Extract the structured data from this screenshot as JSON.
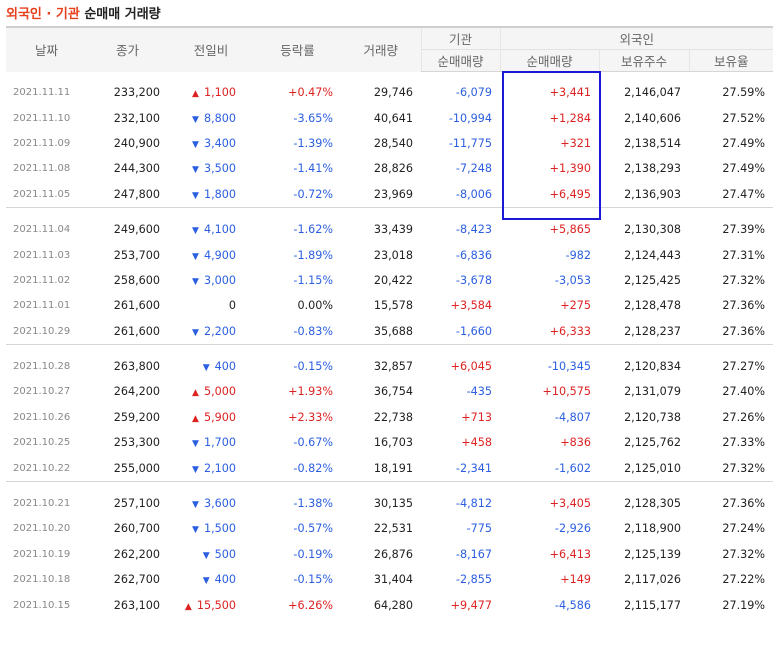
{
  "title": {
    "part1": "외국인 · 기관",
    "part2": "순매매 거래량"
  },
  "headers": {
    "date": "날짜",
    "close": "종가",
    "change": "전일비",
    "rate": "등락률",
    "volume": "거래량",
    "institution": "기관",
    "foreign": "외국인",
    "inst_net": "순매매량",
    "foreign_net": "순매매량",
    "holdings": "보유주수",
    "ratio": "보유율"
  },
  "colors": {
    "up": "#dd2222",
    "down": "#2b5ee0",
    "highlight": "#1a1ad6",
    "title_accent": "#e8401c"
  },
  "groups": [
    [
      {
        "date": "2021.11.11",
        "close": "233,200",
        "dir": "up",
        "change": "1,100",
        "rate": "+0.47%",
        "volume": "29,746",
        "inst": "-6,079",
        "foreign": "+3,441",
        "holdings": "2,146,047",
        "ratio": "27.59%"
      },
      {
        "date": "2021.11.10",
        "close": "232,100",
        "dir": "down",
        "change": "8,800",
        "rate": "-3.65%",
        "volume": "40,641",
        "inst": "-10,994",
        "foreign": "+1,284",
        "holdings": "2,140,606",
        "ratio": "27.52%"
      },
      {
        "date": "2021.11.09",
        "close": "240,900",
        "dir": "down",
        "change": "3,400",
        "rate": "-1.39%",
        "volume": "28,540",
        "inst": "-11,775",
        "foreign": "+321",
        "holdings": "2,138,514",
        "ratio": "27.49%"
      },
      {
        "date": "2021.11.08",
        "close": "244,300",
        "dir": "down",
        "change": "3,500",
        "rate": "-1.41%",
        "volume": "28,826",
        "inst": "-7,248",
        "foreign": "+1,390",
        "holdings": "2,138,293",
        "ratio": "27.49%"
      },
      {
        "date": "2021.11.05",
        "close": "247,800",
        "dir": "down",
        "change": "1,800",
        "rate": "-0.72%",
        "volume": "23,969",
        "inst": "-8,006",
        "foreign": "+6,495",
        "holdings": "2,136,903",
        "ratio": "27.47%"
      }
    ],
    [
      {
        "date": "2021.11.04",
        "close": "249,600",
        "dir": "down",
        "change": "4,100",
        "rate": "-1.62%",
        "volume": "33,439",
        "inst": "-8,423",
        "foreign": "+5,865",
        "holdings": "2,130,308",
        "ratio": "27.39%"
      },
      {
        "date": "2021.11.03",
        "close": "253,700",
        "dir": "down",
        "change": "4,900",
        "rate": "-1.89%",
        "volume": "23,018",
        "inst": "-6,836",
        "foreign": "-982",
        "holdings": "2,124,443",
        "ratio": "27.31%"
      },
      {
        "date": "2021.11.02",
        "close": "258,600",
        "dir": "down",
        "change": "3,000",
        "rate": "-1.15%",
        "volume": "20,422",
        "inst": "-3,678",
        "foreign": "-3,053",
        "holdings": "2,125,425",
        "ratio": "27.32%"
      },
      {
        "date": "2021.11.01",
        "close": "261,600",
        "dir": "flat",
        "change": "0",
        "rate": "0.00%",
        "volume": "15,578",
        "inst": "+3,584",
        "foreign": "+275",
        "holdings": "2,128,478",
        "ratio": "27.36%"
      },
      {
        "date": "2021.10.29",
        "close": "261,600",
        "dir": "down",
        "change": "2,200",
        "rate": "-0.83%",
        "volume": "35,688",
        "inst": "-1,660",
        "foreign": "+6,333",
        "holdings": "2,128,237",
        "ratio": "27.36%"
      }
    ],
    [
      {
        "date": "2021.10.28",
        "close": "263,800",
        "dir": "down",
        "change": "400",
        "rate": "-0.15%",
        "volume": "32,857",
        "inst": "+6,045",
        "foreign": "-10,345",
        "holdings": "2,120,834",
        "ratio": "27.27%"
      },
      {
        "date": "2021.10.27",
        "close": "264,200",
        "dir": "up",
        "change": "5,000",
        "rate": "+1.93%",
        "volume": "36,754",
        "inst": "-435",
        "foreign": "+10,575",
        "holdings": "2,131,079",
        "ratio": "27.40%"
      },
      {
        "date": "2021.10.26",
        "close": "259,200",
        "dir": "up",
        "change": "5,900",
        "rate": "+2.33%",
        "volume": "22,738",
        "inst": "+713",
        "foreign": "-4,807",
        "holdings": "2,120,738",
        "ratio": "27.26%"
      },
      {
        "date": "2021.10.25",
        "close": "253,300",
        "dir": "down",
        "change": "1,700",
        "rate": "-0.67%",
        "volume": "16,703",
        "inst": "+458",
        "foreign": "+836",
        "holdings": "2,125,762",
        "ratio": "27.33%"
      },
      {
        "date": "2021.10.22",
        "close": "255,000",
        "dir": "down",
        "change": "2,100",
        "rate": "-0.82%",
        "volume": "18,191",
        "inst": "-2,341",
        "foreign": "-1,602",
        "holdings": "2,125,010",
        "ratio": "27.32%"
      }
    ],
    [
      {
        "date": "2021.10.21",
        "close": "257,100",
        "dir": "down",
        "change": "3,600",
        "rate": "-1.38%",
        "volume": "30,135",
        "inst": "-4,812",
        "foreign": "+3,405",
        "holdings": "2,128,305",
        "ratio": "27.36%"
      },
      {
        "date": "2021.10.20",
        "close": "260,700",
        "dir": "down",
        "change": "1,500",
        "rate": "-0.57%",
        "volume": "22,531",
        "inst": "-775",
        "foreign": "-2,926",
        "holdings": "2,118,900",
        "ratio": "27.24%"
      },
      {
        "date": "2021.10.19",
        "close": "262,200",
        "dir": "down",
        "change": "500",
        "rate": "-0.19%",
        "volume": "26,876",
        "inst": "-8,167",
        "foreign": "+6,413",
        "holdings": "2,125,139",
        "ratio": "27.32%"
      },
      {
        "date": "2021.10.18",
        "close": "262,700",
        "dir": "down",
        "change": "400",
        "rate": "-0.15%",
        "volume": "31,404",
        "inst": "-2,855",
        "foreign": "+149",
        "holdings": "2,117,026",
        "ratio": "27.22%"
      },
      {
        "date": "2021.10.15",
        "close": "263,100",
        "dir": "up",
        "change": "15,500",
        "rate": "+6.26%",
        "volume": "64,280",
        "inst": "+9,477",
        "foreign": "-4,586",
        "holdings": "2,115,177",
        "ratio": "27.19%"
      }
    ]
  ]
}
